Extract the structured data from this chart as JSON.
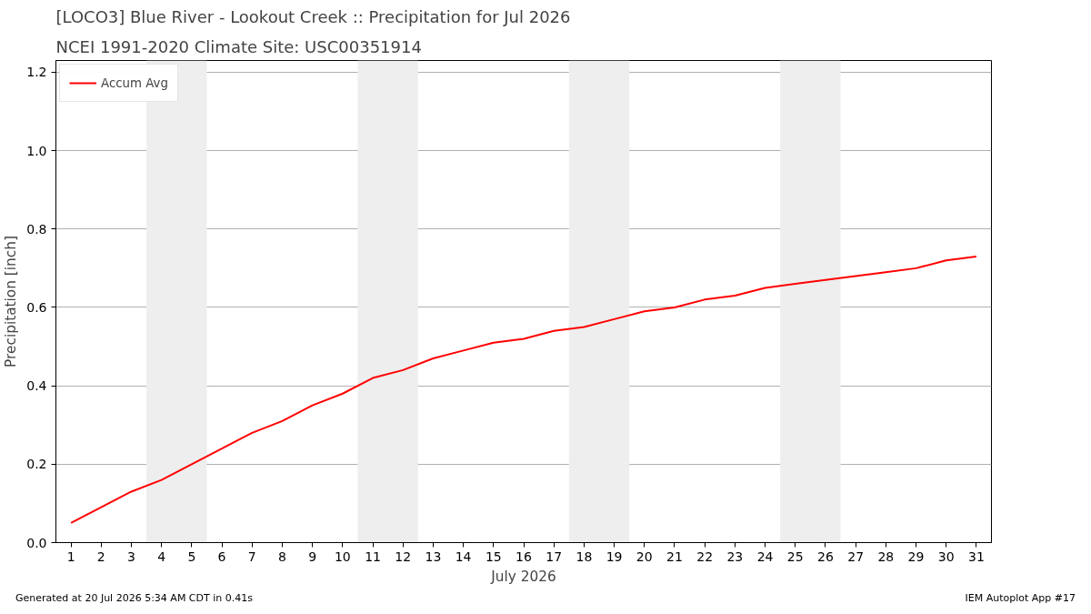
{
  "chart_data": {
    "type": "line",
    "title": "[LOCO3] Blue River - Lookout Creek :: Precipitation for Jul 2026",
    "subtitle": "NCEI 1991-2020 Climate Site: USC00351914",
    "xlabel": "July 2026",
    "ylabel": "Precipitation [inch]",
    "x": [
      1,
      2,
      3,
      4,
      5,
      6,
      7,
      8,
      9,
      10,
      11,
      12,
      13,
      14,
      15,
      16,
      17,
      18,
      19,
      20,
      21,
      22,
      23,
      24,
      25,
      26,
      27,
      28,
      29,
      30,
      31
    ],
    "series": [
      {
        "name": "Accum Avg",
        "color": "#ff0000",
        "values": [
          0.05,
          0.09,
          0.13,
          0.16,
          0.2,
          0.24,
          0.28,
          0.31,
          0.35,
          0.38,
          0.42,
          0.44,
          0.47,
          0.49,
          0.51,
          0.52,
          0.54,
          0.55,
          0.57,
          0.59,
          0.6,
          0.62,
          0.63,
          0.65,
          0.66,
          0.67,
          0.68,
          0.69,
          0.7,
          0.72,
          0.73
        ]
      }
    ],
    "xlim": [
      0.5,
      31.5
    ],
    "xticks": [
      1,
      2,
      3,
      4,
      5,
      6,
      7,
      8,
      9,
      10,
      11,
      12,
      13,
      14,
      15,
      16,
      17,
      18,
      19,
      20,
      21,
      22,
      23,
      24,
      25,
      26,
      27,
      28,
      29,
      30,
      31
    ],
    "ylim": [
      0,
      1.23
    ],
    "yticks": [
      {
        "value": 0,
        "label": "0.0"
      },
      0.2,
      0.4,
      0.6,
      0.8,
      {
        "value": 1,
        "label": "1.0"
      },
      1.2
    ],
    "bands": [
      {
        "axis": "x",
        "from": 3.5,
        "to": 5.5,
        "color": "#eeeeee"
      },
      {
        "axis": "x",
        "from": 10.5,
        "to": 12.5,
        "color": "#eeeeee"
      },
      {
        "axis": "x",
        "from": 17.5,
        "to": 19.5,
        "color": "#eeeeee"
      },
      {
        "axis": "x",
        "from": 24.5,
        "to": 26.5,
        "color": "#eeeeee"
      }
    ],
    "grid": "y",
    "legend": "top left",
    "line_style": "solid",
    "marker": "none",
    "annotations": [
      "Generated at 20 Jul 2026 5:34 AM CDT in 0.41s",
      "IEM Autoplot App #17"
    ]
  }
}
